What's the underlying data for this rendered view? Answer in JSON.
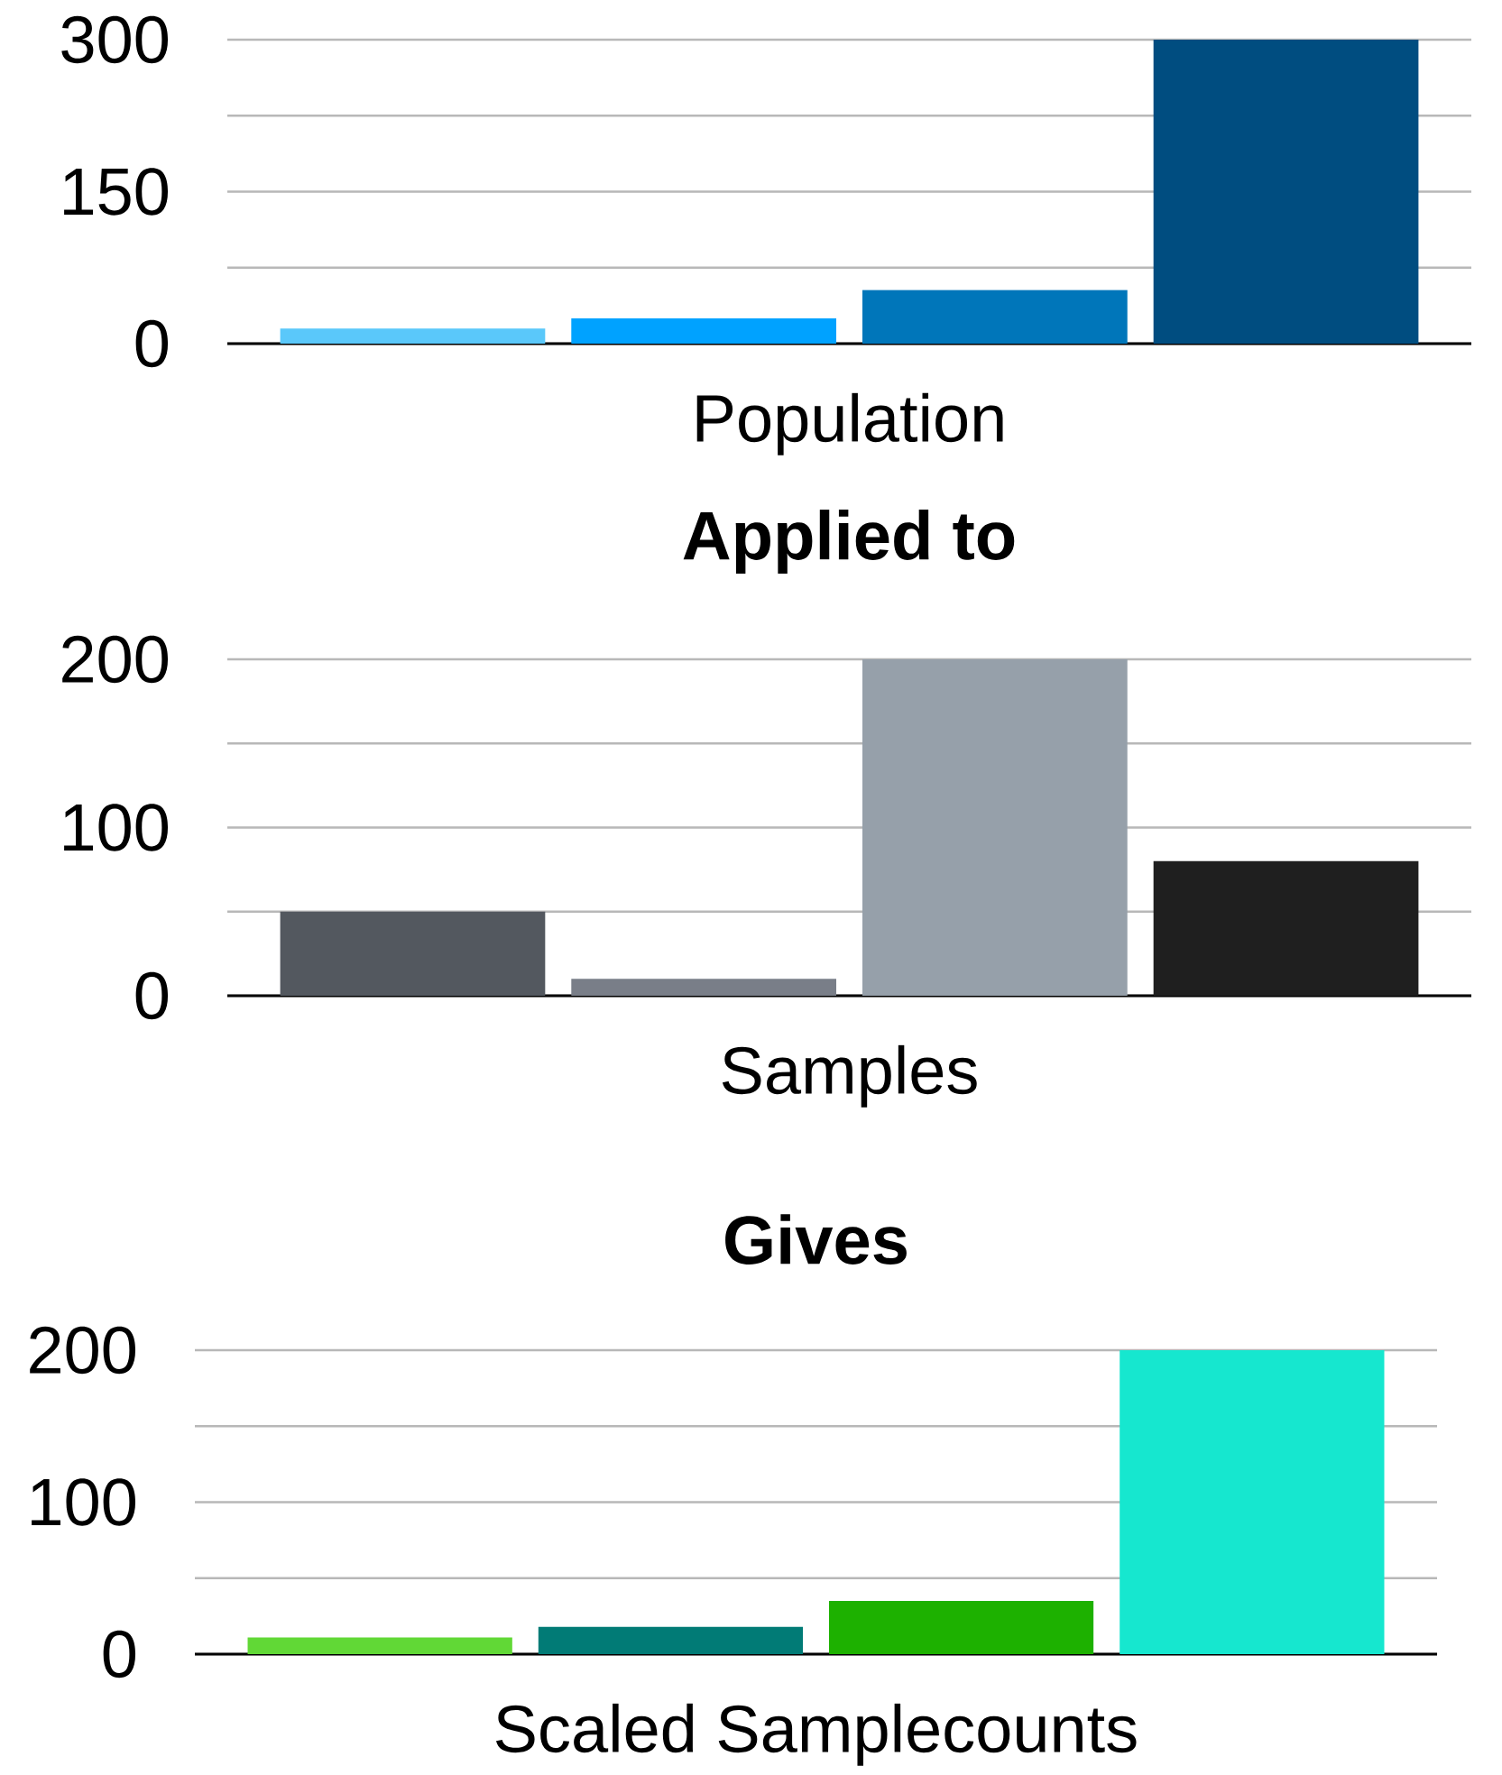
{
  "chart_data": [
    {
      "type": "bar",
      "xlabel": "Population",
      "categories": [
        null
      ],
      "series": [
        {
          "color": "#5ac8fa",
          "values": [
            15
          ]
        },
        {
          "color": "#00a2ff",
          "values": [
            25
          ]
        },
        {
          "color": "#0076ba",
          "values": [
            53
          ]
        },
        {
          "color": "#004d80",
          "values": [
            300
          ]
        }
      ],
      "ylim": [
        0,
        300
      ],
      "yticks": [
        0,
        {
          "value": 75,
          "label": null
        },
        150,
        {
          "value": 225,
          "label": null
        },
        300
      ],
      "grid": "y"
    },
    {
      "type": "bar",
      "title": "Applied to",
      "xlabel": "Samples",
      "categories": [
        null
      ],
      "series": [
        {
          "color": "#53585f",
          "values": [
            50
          ]
        },
        {
          "color": "#797e88",
          "values": [
            10
          ]
        },
        {
          "color": "#96a0aa",
          "values": [
            200
          ]
        },
        {
          "color": "#1f1f1f",
          "values": [
            80
          ]
        }
      ],
      "ylim": [
        0,
        200
      ],
      "yticks": [
        0,
        {
          "value": 50,
          "label": null
        },
        100,
        {
          "value": 150,
          "label": null
        },
        200
      ],
      "grid": "y"
    },
    {
      "type": "bar",
      "title": "Gives",
      "xlabel": "Scaled Samplecounts",
      "categories": [
        null
      ],
      "series": [
        {
          "color": "#61d836",
          "values": [
            11
          ]
        },
        {
          "color": "#017b76",
          "values": [
            18
          ]
        },
        {
          "color": "#1db100",
          "values": [
            35
          ]
        },
        {
          "color": "#16e7cf",
          "values": [
            200
          ]
        }
      ],
      "ylim": [
        0,
        200
      ],
      "yticks": [
        0,
        {
          "value": 50,
          "label": null
        },
        100,
        {
          "value": 150,
          "label": null
        },
        200
      ],
      "grid": "y"
    }
  ]
}
